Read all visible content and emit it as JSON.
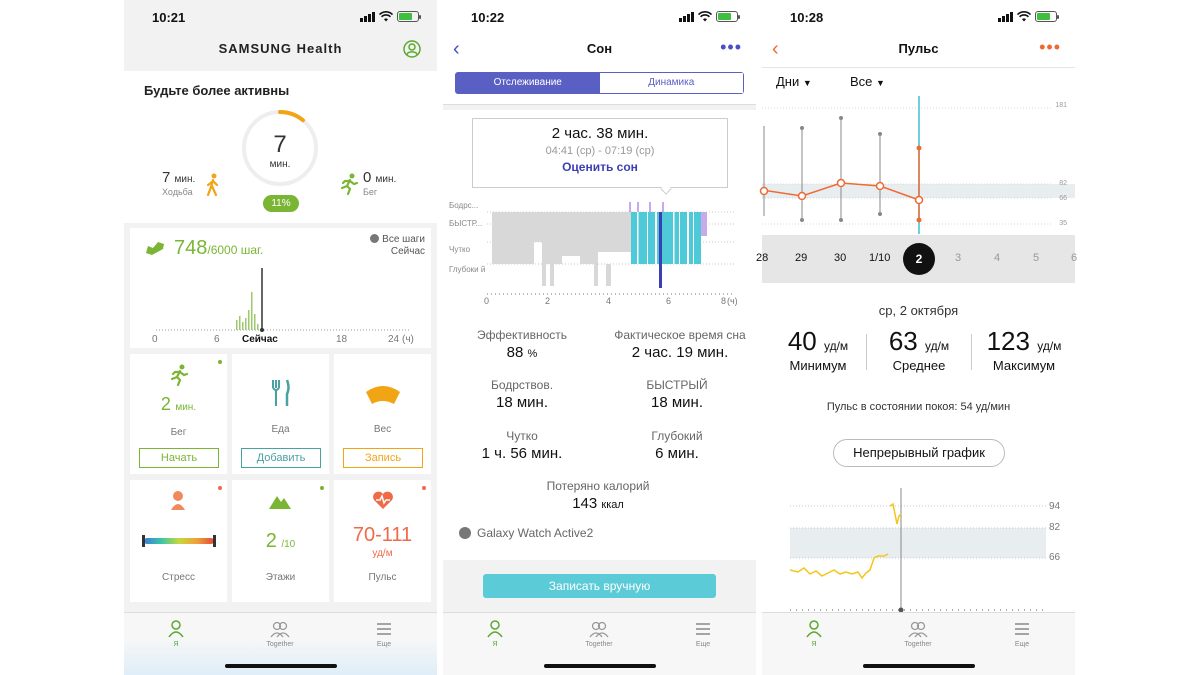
{
  "screen1": {
    "time": "10:21",
    "brand": "SAMSUNG Health",
    "active_title": "Будьте более активны",
    "ring": {
      "value": "7",
      "unit": "мин.",
      "percent": "11%",
      "fraction": 0.11
    },
    "walk": {
      "value": "7",
      "unit": "мин.",
      "label": "Ходьба"
    },
    "run": {
      "value": "0",
      "unit": "мин.",
      "label": "Бег"
    },
    "steps": {
      "value": "748",
      "goal": "/6000 шаг.",
      "source": "Все шаги",
      "source_time": "Сейчас"
    },
    "steps_axis": [
      "0",
      "6",
      "Сейчас",
      "18",
      "24",
      "(ч)"
    ],
    "tiles": {
      "run": {
        "value": "2",
        "unit": "мин.",
        "label": "Бег",
        "button": "Начать"
      },
      "food": {
        "label": "Еда",
        "button": "Добавить"
      },
      "weight": {
        "label": "Вес",
        "button": "Запись"
      },
      "stress": {
        "label": "Стресс"
      },
      "floors": {
        "value": "2",
        "unit": "/10",
        "label": "Этажи"
      },
      "pulse": {
        "value": "70-111",
        "unit": "уд/м",
        "label": "Пульс"
      }
    },
    "tabs": [
      "Я",
      "Together",
      "Еще"
    ],
    "colors": {
      "green": "#7bb534",
      "teal": "#4aa1a1",
      "orange": "#f1a515",
      "red": "#f06a47",
      "active_tab": "#5ca830"
    }
  },
  "screen2": {
    "time": "10:22",
    "title": "Сон",
    "tabs": [
      "Отслеживание",
      "Динамика"
    ],
    "tooltip": {
      "duration": "2 час.  38 мин.",
      "range": "04:41 (ср) - 07:19 (ср)",
      "link": "Оценить сон"
    },
    "stages": [
      "Бодрс...",
      "БЫСТР...",
      "Чутко",
      "Глубоки й"
    ],
    "x_axis": [
      "0",
      "2",
      "4",
      "6",
      "8",
      "(ч)"
    ],
    "metrics": [
      {
        "label": "Эффективность",
        "value": "88",
        "unit": "%"
      },
      {
        "label": "Фактическое время сна",
        "value": "2 час. 19 мин."
      },
      {
        "label": "Бодрствов.",
        "value": "18 мин."
      },
      {
        "label": "БЫСТРЫЙ",
        "value": "18 мин."
      },
      {
        "label": "Чутко",
        "value": "1 ч. 56 мин."
      },
      {
        "label": "Глубокий",
        "value": "6 мин."
      }
    ],
    "calories": {
      "label": "Потеряно калорий",
      "value": "143",
      "unit": "ккал"
    },
    "device": "Galaxy Watch Active2",
    "record_button": "Записать вручную",
    "tabbar": [
      "Я",
      "Together",
      "Еще"
    ]
  },
  "screen3": {
    "time": "10:28",
    "title": "Пульс",
    "filters": [
      "Дни",
      "Все"
    ],
    "y_ticks": [
      "181",
      "82",
      "66",
      "35"
    ],
    "dates": [
      "28",
      "29",
      "30",
      "1/10",
      "2",
      "3",
      "4",
      "5",
      "6"
    ],
    "selected_date": "2",
    "date_label": "ср, 2 октября",
    "stats": [
      {
        "value": "40",
        "unit": "уд/м",
        "label": "Минимум"
      },
      {
        "value": "63",
        "unit": "уд/м",
        "label": "Среднее"
      },
      {
        "value": "123",
        "unit": "уд/м",
        "label": "Максимум"
      }
    ],
    "resting": "Пульс в состоянии покоя: 54 уд/мин",
    "continuous_button": "Непрерывный график",
    "chart2_ticks": [
      "94",
      "82",
      "66"
    ],
    "tabbar": [
      "Я",
      "Together",
      "Еще"
    ],
    "colors": {
      "accent": "#ee6a35",
      "teal": "#3ec1cf"
    }
  }
}
